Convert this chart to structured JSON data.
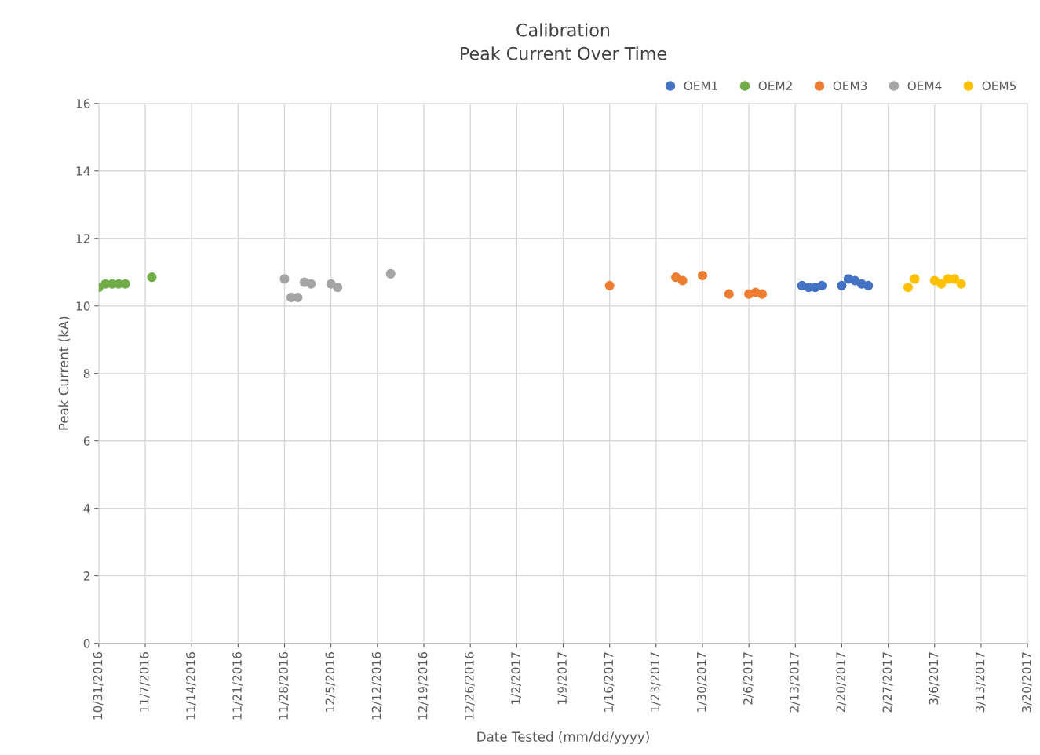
{
  "chart_data": {
    "type": "scatter",
    "title": "Calibration\nPeak Current Over Time",
    "xlabel": "Date Tested (mm/dd/yyyy)",
    "ylabel": "Peak Current (kA)",
    "series": [
      {
        "name": "OEM1",
        "color": "#4472c4",
        "x": [
          "2017-02-14",
          "2017-02-15",
          "2017-02-16",
          "2017-02-17",
          "2017-02-20",
          "2017-02-21",
          "2017-02-22",
          "2017-02-23",
          "2017-02-24"
        ],
        "values": [
          10.6,
          10.55,
          10.55,
          10.6,
          10.6,
          10.8,
          10.75,
          10.65,
          10.6
        ]
      },
      {
        "name": "OEM2",
        "color": "#70ad47",
        "x": [
          "2016-10-31",
          "2016-11-01",
          "2016-11-02",
          "2016-11-03",
          "2016-11-04",
          "2016-11-08"
        ],
        "values": [
          10.55,
          10.65,
          10.65,
          10.65,
          10.65,
          10.85
        ]
      },
      {
        "name": "OEM3",
        "color": "#ed7d31",
        "x": [
          "2017-01-16",
          "2017-01-26",
          "2017-01-27",
          "2017-01-30",
          "2017-02-03",
          "2017-02-06",
          "2017-02-07",
          "2017-02-08"
        ],
        "values": [
          10.6,
          10.85,
          10.75,
          10.9,
          10.35,
          10.35,
          10.4,
          10.35
        ]
      },
      {
        "name": "OEM4",
        "color": "#a5a5a5",
        "x": [
          "2016-11-28",
          "2016-11-29",
          "2016-11-30",
          "2016-12-01",
          "2016-12-02",
          "2016-12-05",
          "2016-12-06",
          "2016-12-14"
        ],
        "values": [
          10.8,
          10.25,
          10.25,
          10.7,
          10.65,
          10.65,
          10.55,
          10.95
        ]
      },
      {
        "name": "OEM5",
        "color": "#ffc000",
        "x": [
          "2017-03-02",
          "2017-03-03",
          "2017-03-06",
          "2017-03-07",
          "2017-03-08",
          "2017-03-09",
          "2017-03-10"
        ],
        "values": [
          10.55,
          10.8,
          10.75,
          10.65,
          10.8,
          10.8,
          10.65
        ]
      }
    ],
    "xlim": [
      "2016-10-31",
      "2017-03-20"
    ],
    "xticks": [
      {
        "value": "2016-10-31",
        "label": "10/31/2016"
      },
      {
        "value": "2016-11-07",
        "label": "11/7/2016"
      },
      {
        "value": "2016-11-14",
        "label": "11/14/2016"
      },
      {
        "value": "2016-11-21",
        "label": "11/21/2016"
      },
      {
        "value": "2016-11-28",
        "label": "11/28/2016"
      },
      {
        "value": "2016-12-05",
        "label": "12/5/2016"
      },
      {
        "value": "2016-12-12",
        "label": "12/12/2016"
      },
      {
        "value": "2016-12-19",
        "label": "12/19/2016"
      },
      {
        "value": "2016-12-26",
        "label": "12/26/2016"
      },
      {
        "value": "2017-01-02",
        "label": "1/2/2017"
      },
      {
        "value": "2017-01-09",
        "label": "1/9/2017"
      },
      {
        "value": "2017-01-16",
        "label": "1/16/2017"
      },
      {
        "value": "2017-01-23",
        "label": "1/23/2017"
      },
      {
        "value": "2017-01-30",
        "label": "1/30/2017"
      },
      {
        "value": "2017-02-06",
        "label": "2/6/2017"
      },
      {
        "value": "2017-02-13",
        "label": "2/13/2017"
      },
      {
        "value": "2017-02-20",
        "label": "2/20/2017"
      },
      {
        "value": "2017-02-27",
        "label": "2/27/2017"
      },
      {
        "value": "2017-03-06",
        "label": "3/6/2017"
      },
      {
        "value": "2017-03-13",
        "label": "3/13/2017"
      },
      {
        "value": "2017-03-20",
        "label": "3/20/2017"
      }
    ],
    "ylim": [
      0,
      16
    ],
    "yticks": [
      0,
      2,
      4,
      6,
      8,
      10,
      12,
      14,
      16
    ],
    "grid": true,
    "legend": "top right",
    "marker": "circle"
  }
}
